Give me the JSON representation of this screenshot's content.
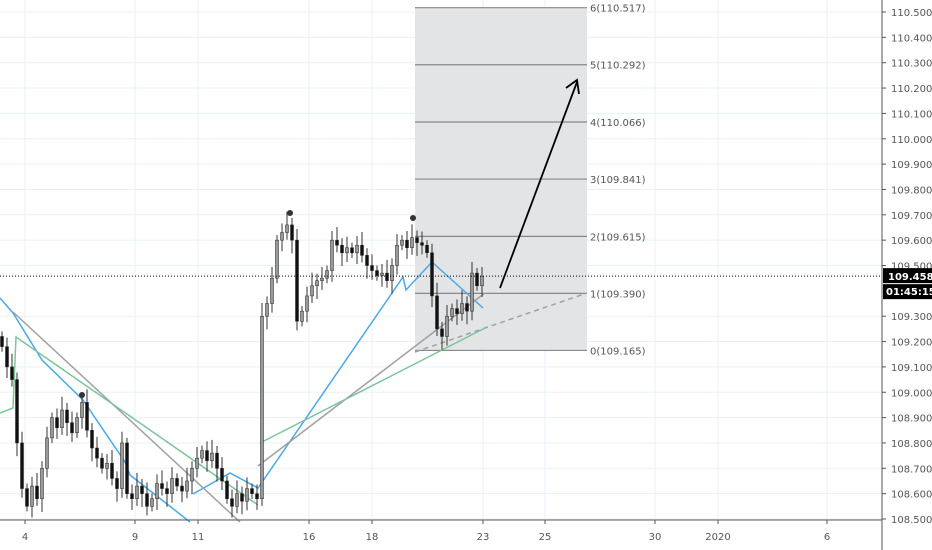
{
  "chart_data": {
    "type": "candlestick",
    "symbol_unit": "price",
    "ylim": [
      108.47,
      110.56
    ],
    "grid": true,
    "y_ticks": [
      "110.500",
      "110.400",
      "110.300",
      "110.200",
      "110.100",
      "110.000",
      "109.900",
      "109.800",
      "109.700",
      "109.600",
      "109.500",
      "109.300",
      "109.200",
      "109.100",
      "109.000",
      "108.900",
      "108.800",
      "108.700",
      "108.600",
      "108.500"
    ],
    "x_ticks": [
      "4",
      "9",
      "11",
      "16",
      "18",
      "23",
      "25",
      "30",
      "2020",
      "6"
    ],
    "close": [
      109.18,
      109.1,
      109.05,
      108.8,
      108.62,
      108.55,
      108.63,
      108.58,
      108.7,
      108.82,
      108.9,
      108.86,
      108.93,
      108.88,
      108.84,
      108.9,
      108.96,
      108.85,
      108.78,
      108.74,
      108.7,
      108.72,
      108.66,
      108.62,
      108.8,
      108.6,
      108.58,
      108.63,
      108.6,
      108.55,
      108.58,
      108.64,
      108.62,
      108.6,
      108.66,
      108.63,
      108.61,
      108.65,
      108.7,
      108.74,
      108.77,
      108.73,
      108.76,
      108.7,
      108.65,
      108.58,
      108.55,
      108.6,
      108.57,
      108.62,
      108.6,
      108.58,
      109.3,
      109.35,
      109.45,
      109.6,
      109.63,
      109.66,
      109.6,
      109.28,
      109.32,
      109.38,
      109.42,
      109.44,
      109.45,
      109.48,
      109.6,
      109.58,
      109.55,
      109.57,
      109.55,
      109.58,
      109.54,
      109.5,
      109.48,
      109.46,
      109.47,
      109.44,
      109.5,
      109.58,
      109.6,
      109.57,
      109.61,
      109.59,
      109.58,
      109.55,
      109.38,
      109.25,
      109.22,
      109.3,
      109.33,
      109.31,
      109.35,
      109.32,
      109.47,
      109.42,
      109.458
    ],
    "current_price": "109.458",
    "countdown": "01:45:15",
    "fib_levels": [
      {
        "label": "0(109.165)",
        "value": 109.165
      },
      {
        "label": "1(109.390)",
        "value": 109.39
      },
      {
        "label": "2(109.615)",
        "value": 109.615
      },
      {
        "label": "3(109.841)",
        "value": 109.841
      },
      {
        "label": "4(110.066)",
        "value": 110.066
      },
      {
        "label": "5(110.292)",
        "value": 110.292
      },
      {
        "label": "6(110.517)",
        "value": 110.517
      }
    ],
    "colors": {
      "candle": "#000000",
      "blue_line": "#4aa8e8",
      "green_line": "#7cc49a",
      "gray_line": "#a0a0a0",
      "fib_box": "#e3e4e6",
      "grid": "#e9f0f6"
    }
  }
}
